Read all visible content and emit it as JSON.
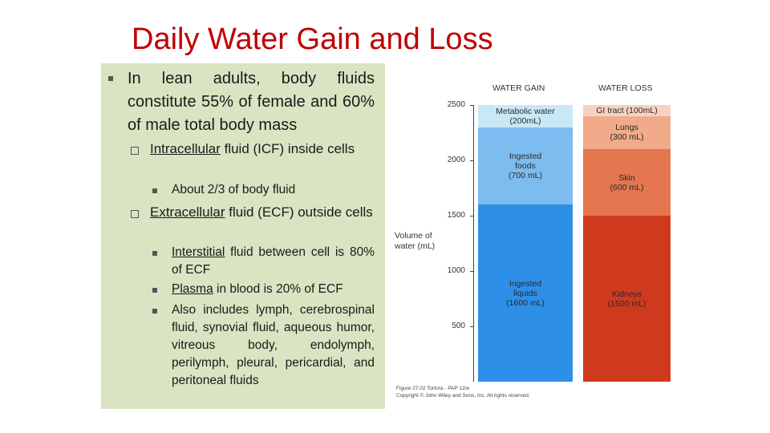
{
  "slide": {
    "title": "Daily Water Gain and Loss",
    "bullet1": "In lean adults, body fluids constitute 55% of female and 60% of male total body mass",
    "icf_term": "Intracellular",
    "icf_rest": " fluid (ICF) inside cells",
    "icf_sub": "About 2/3 of body fluid",
    "ecf_term": "Extracellular",
    "ecf_rest": " fluid (ECF) outside cells",
    "ecf_sub1_term": "Interstitial",
    "ecf_sub1_rest": " fluid between cell is 80% of ECF",
    "ecf_sub2_term": "Plasma",
    "ecf_sub2_rest": " in blood is 20% of ECF",
    "ecf_sub3": "Also includes lymph, cerebrospinal fluid, synovial fluid, aqueous humor, vitreous body, endolymph, perilymph, pleural, pericardial, and peritoneal fluids"
  },
  "figure": {
    "y_axis_label_line1": "Volume of",
    "y_axis_label_line2": "water (mL)",
    "caption_line1": "Figure 27.02  Tortora - PAP 12/e",
    "caption_line2": "Copyright © John Wiley and Sons, Inc. All rights reserved."
  },
  "chart_data": {
    "type": "bar",
    "categories": [
      "WATER GAIN",
      "WATER LOSS"
    ],
    "y_ticks": [
      "500",
      "1000",
      "1500",
      "2000",
      "2500"
    ],
    "ylim": [
      0,
      2500
    ],
    "stacks": {
      "gain": [
        {
          "label1": "Ingested",
          "label2": "liquids",
          "label3": "(1600 mL)",
          "value": 1600,
          "color": "#2e8fe8"
        },
        {
          "label1": "Ingested",
          "label2": "foods",
          "label3": "(700 mL)",
          "value": 700,
          "color": "#7cbcef"
        },
        {
          "label1": "Metabolic water",
          "label2": "(200mL)",
          "label3": "",
          "value": 200,
          "color": "#c9e8f6"
        }
      ],
      "loss": [
        {
          "label1": "Kidneys",
          "label2": "(1500 mL)",
          "label3": "",
          "value": 1500,
          "color": "#cf3a1e"
        },
        {
          "label1": "Skin",
          "label2": "(600 mL)",
          "label3": "",
          "value": 600,
          "color": "#e47650"
        },
        {
          "label1": "Lungs",
          "label2": "(300 mL)",
          "label3": "",
          "value": 300,
          "color": "#f1ab8a"
        },
        {
          "label1": "GI tract (100mL)",
          "label2": "",
          "label3": "",
          "value": 100,
          "color": "#f6d3c0"
        }
      ]
    }
  }
}
